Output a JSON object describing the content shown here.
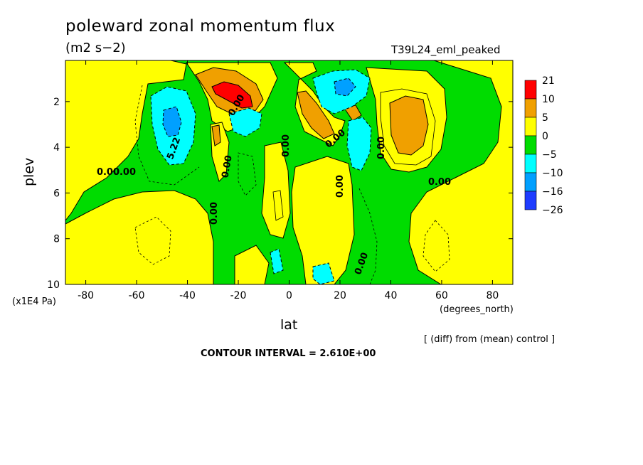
{
  "chart_data": {
    "type": "heatmap",
    "title": "poleward zonal momentum flux",
    "subtitle": "(m2 s−2)",
    "run_label": "T39L24_eml_peaked",
    "xlabel": "lat",
    "x_unit": "(degrees_north)",
    "ylabel": "plev",
    "y_unit": "(x1E4 Pa)",
    "xlim": [
      -88,
      88
    ],
    "ylim": [
      10,
      0.2
    ],
    "x_ticks": [
      "-80",
      "-60",
      "-40",
      "-20",
      "0",
      "20",
      "40",
      "60",
      "80"
    ],
    "y_ticks": [
      "2",
      "4",
      "6",
      "8",
      "10"
    ],
    "colorbar": {
      "labels": [
        "21",
        "10",
        "5",
        "0",
        "−5",
        "−10",
        "−16",
        "−26"
      ],
      "colors": [
        "#ff0000",
        "#f0a000",
        "#ffff00",
        "#00dc00",
        "#00ffff",
        "#00a0ff",
        "#1e3cff"
      ]
    },
    "contour_labels": [
      "0.00",
      "0.00",
      "0.00",
      "0.00",
      "0.00",
      "0.00",
      "0.00",
      "0.00",
      "0.00",
      "0.00",
      "0.00",
      "5.22"
    ],
    "footnote": "[ (diff) from (mean) control ]",
    "contour_interval_text": "CONTOUR INTERVAL = 2.610E+00",
    "field": [
      {
        "lat": -25,
        "plev": 1.7,
        "value": 19
      },
      {
        "lat": -28,
        "plev": 1.1,
        "value": 8
      },
      {
        "lat": -30,
        "plev": 3.5,
        "value": 6
      },
      {
        "lat": 10,
        "plev": 2.4,
        "value": 8
      },
      {
        "lat": 27,
        "plev": 2.5,
        "value": 6
      },
      {
        "lat": 47,
        "plev": 2.8,
        "value": 9
      },
      {
        "lat": -47,
        "plev": 2.8,
        "value": -9
      },
      {
        "lat": 22,
        "plev": 1.5,
        "value": -10
      },
      {
        "lat": 25,
        "plev": 3.8,
        "value": -7
      },
      {
        "lat": -13,
        "plev": 2.8,
        "value": -7
      },
      {
        "lat": -65,
        "plev": 6.8,
        "value": 3
      }
    ]
  }
}
